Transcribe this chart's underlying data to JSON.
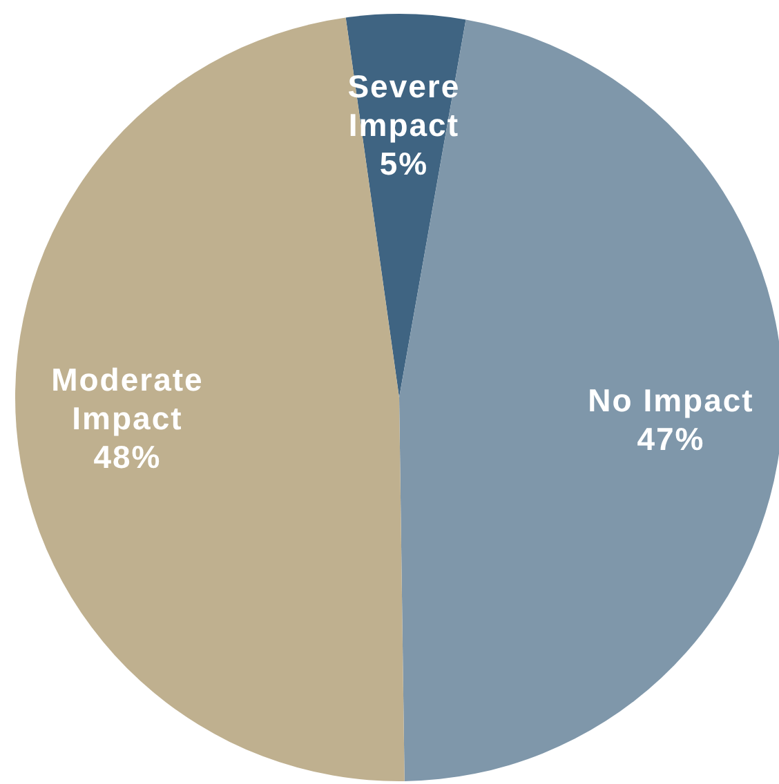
{
  "chart_data": {
    "type": "pie",
    "categories": [
      "Severe Impact",
      "No Impact",
      "Moderate Impact"
    ],
    "values": [
      5,
      47,
      48
    ],
    "colors": [
      "#3f6482",
      "#7f97aa",
      "#bfb08f"
    ],
    "value_labels": [
      "5%",
      "47%",
      "48%"
    ]
  }
}
